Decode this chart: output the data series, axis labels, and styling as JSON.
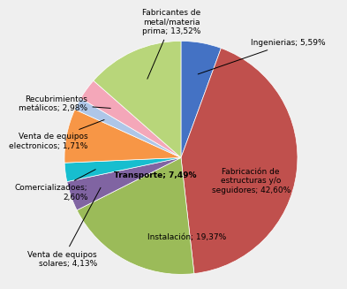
{
  "values": [
    5.59,
    42.6,
    19.37,
    4.13,
    2.6,
    7.49,
    1.71,
    2.98,
    13.52
  ],
  "colors": [
    "#4472C4",
    "#C0504D",
    "#9BBB59",
    "#8064A2",
    "#17BECF",
    "#F79646",
    "#AEC6E8",
    "#F4A7B9",
    "#B8D67A"
  ],
  "annot_labels": [
    "Ingenierias; 5,59%",
    "Fabricación de\nestructuras y/o\nseguidores; 42,60%",
    "Instalación; 19,37%",
    "Venta de equipos\nsolares; 4,13%",
    "Comercializadoes;\n2,60%",
    "Transporte; 7,49%",
    "Venta de equipos\nelectronicos; 1,71%",
    "Recubrimientos\nmetálicos; 2,98%",
    "Fabricantes de\nmetal/materia\nprima; 13,52%"
  ],
  "background_color": "#EFEFEF",
  "startangle": 90
}
